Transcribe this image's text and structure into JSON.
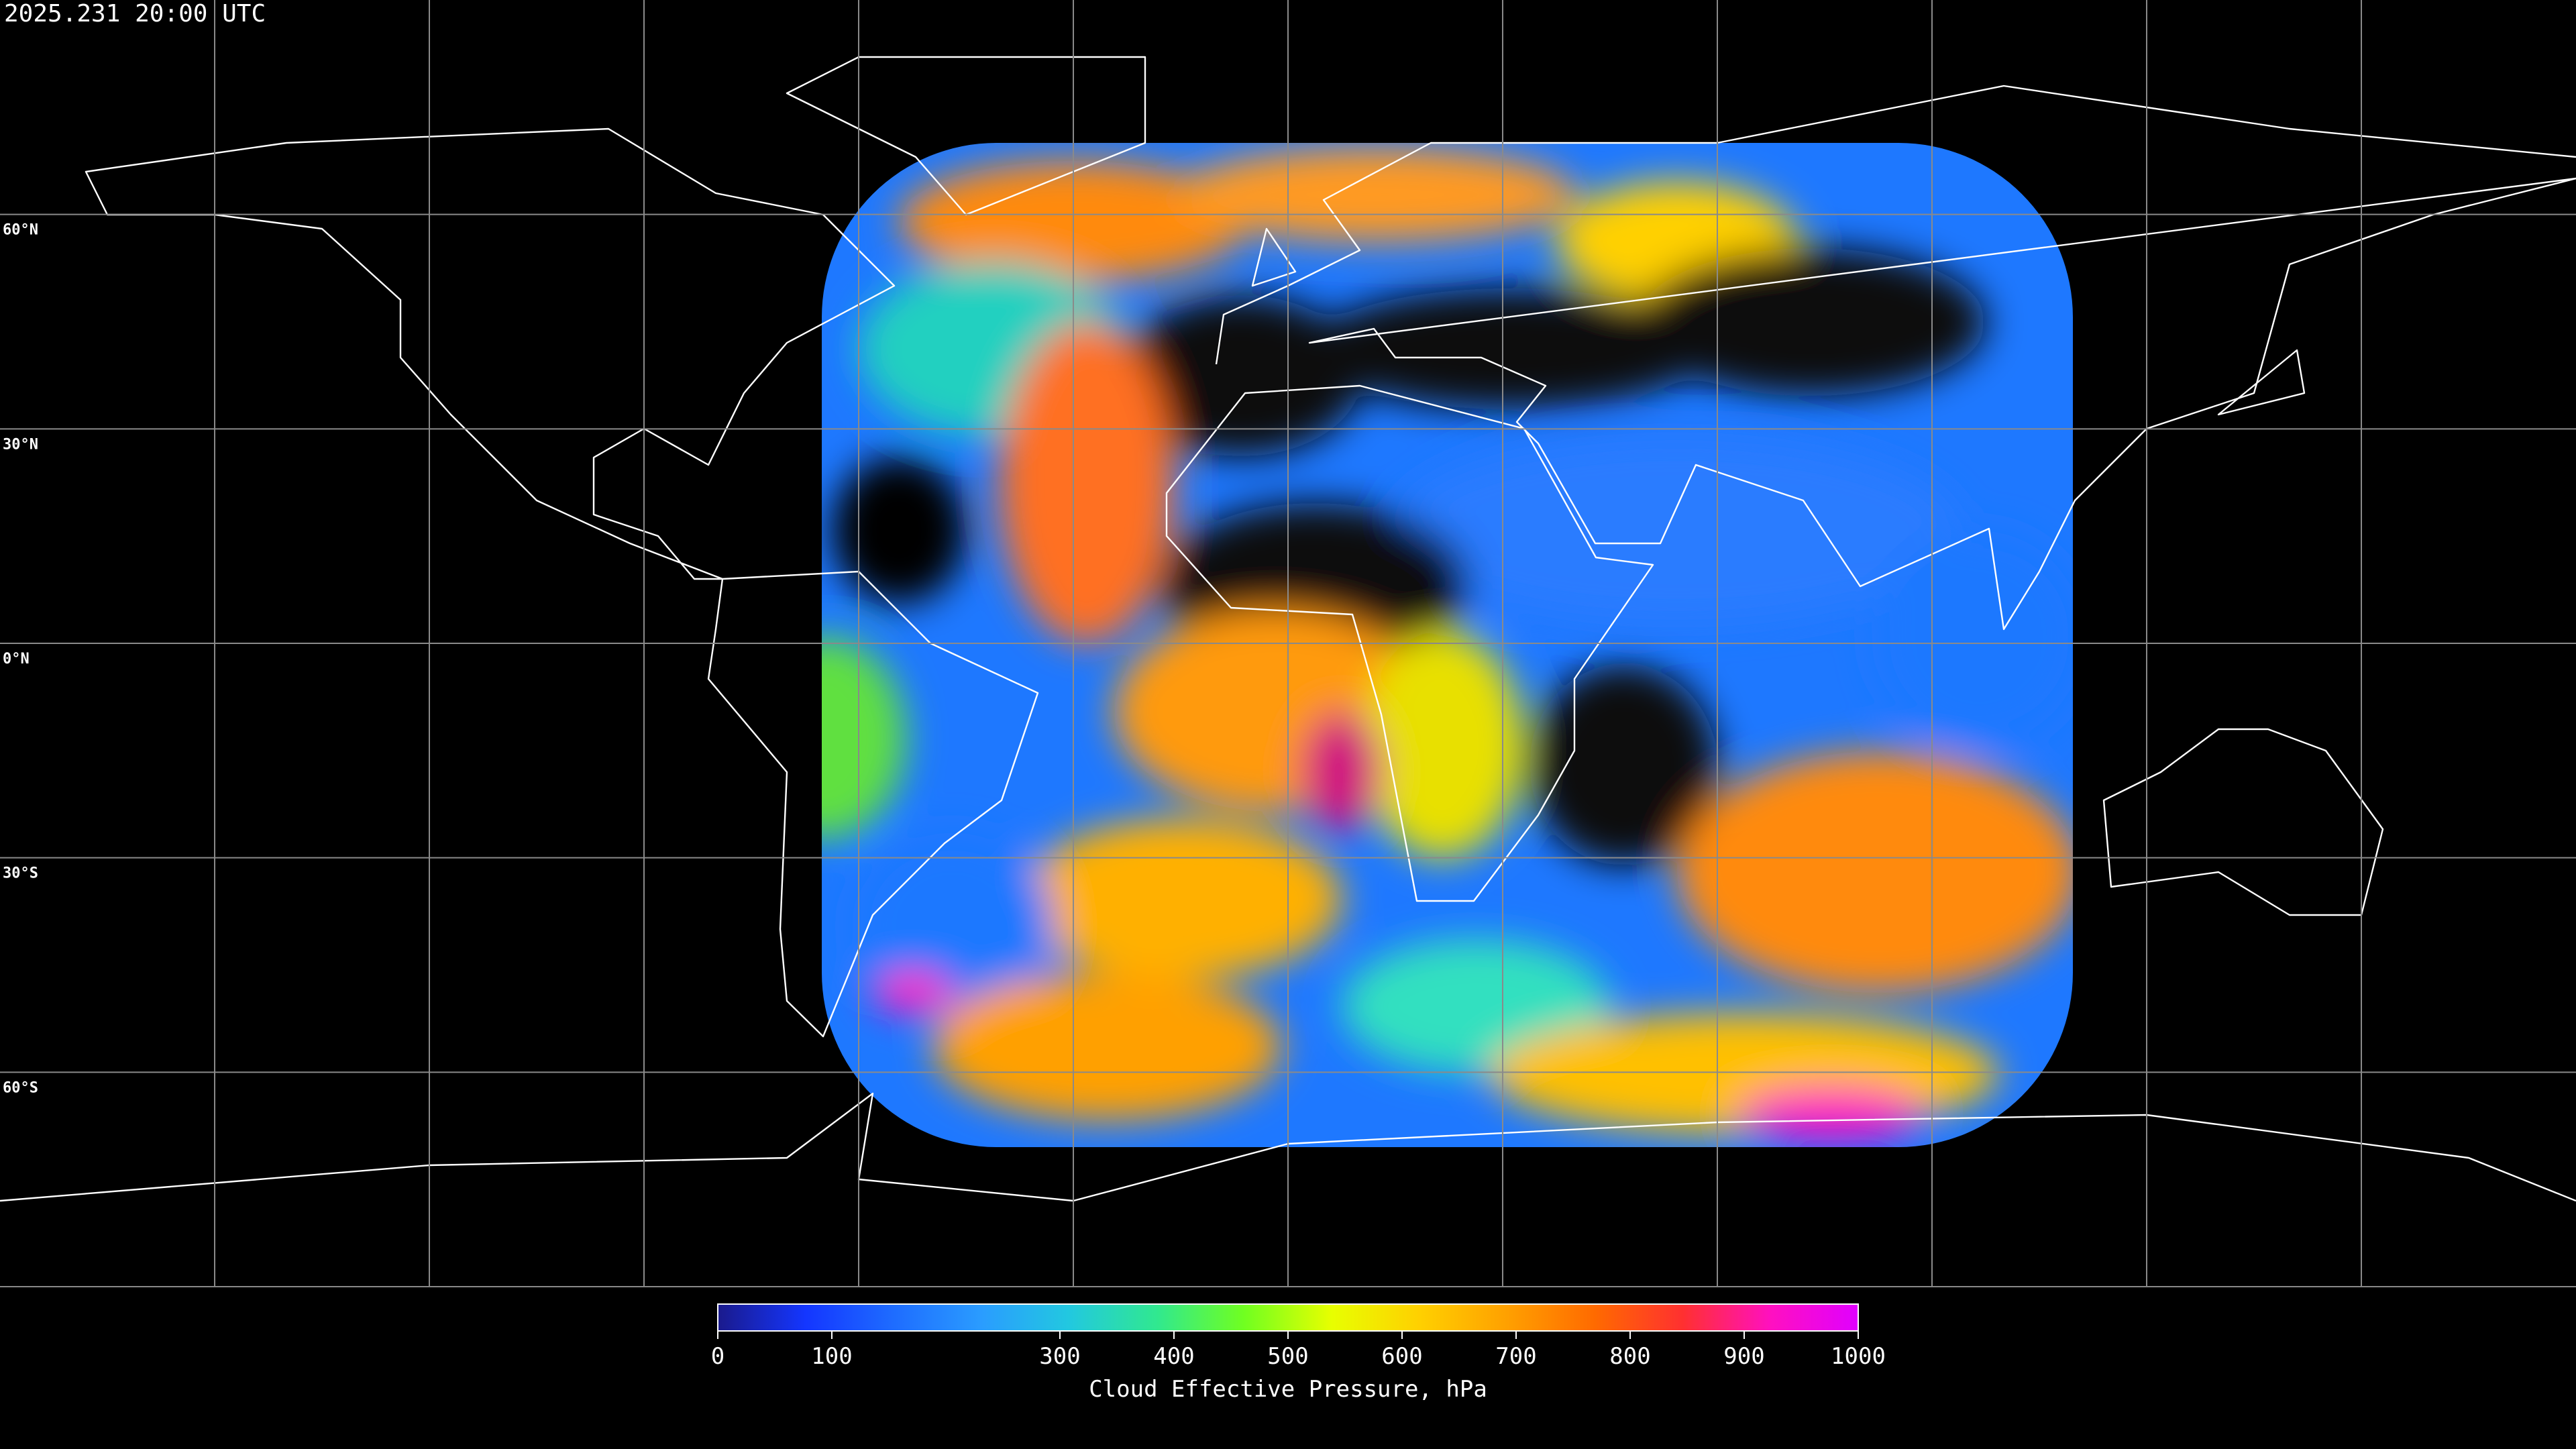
{
  "header": {
    "timestamp": "2025.231 20:00 UTC"
  },
  "map": {
    "xlim": [
      -180,
      180
    ],
    "ylim": [
      -90,
      90
    ],
    "parallels": [
      {
        "value": 60,
        "label": "60°N"
      },
      {
        "value": 30,
        "label": "30°N"
      },
      {
        "value": 0,
        "label": "0°N"
      },
      {
        "value": -30,
        "label": "30°S"
      },
      {
        "value": -60,
        "label": "60°S"
      }
    ],
    "meridians": [
      -150,
      -120,
      -90,
      -60,
      -30,
      0,
      30,
      60,
      90,
      120,
      150
    ]
  },
  "colorbar": {
    "title": "Cloud Effective Pressure, hPa",
    "lim": [
      0,
      1000
    ],
    "ticks": [
      0,
      100,
      300,
      400,
      500,
      600,
      700,
      800,
      900,
      1000
    ],
    "colors": [
      "#1a1a8c",
      "#1436ff",
      "#1e6cff",
      "#2a9cff",
      "#22c8e0",
      "#30e890",
      "#70ff20",
      "#e8ff00",
      "#ffd000",
      "#ffa000",
      "#ff6a00",
      "#ff3030",
      "#ff10c0",
      "#e000ff"
    ]
  }
}
